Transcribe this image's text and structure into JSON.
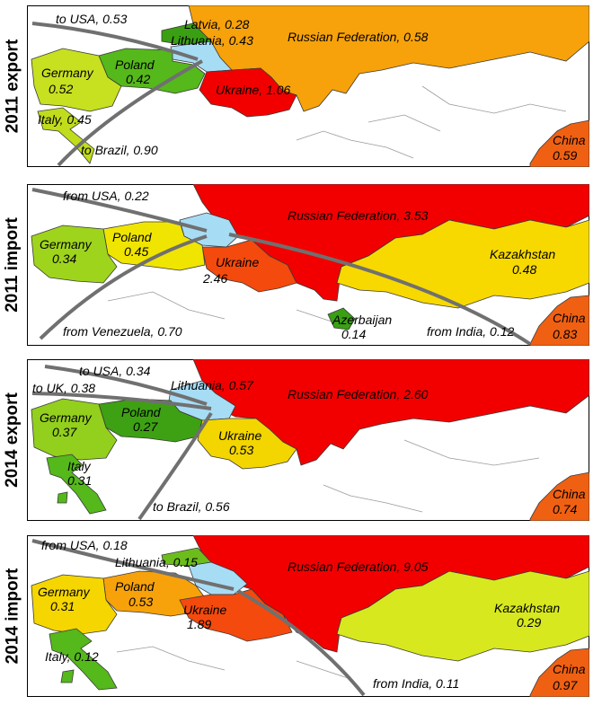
{
  "colors": {
    "sea": "#ffffff",
    "border": "#3a3a3a",
    "arrow": "#707070"
  },
  "panels": [
    {
      "title": "2011 export",
      "countries": {
        "russia": {
          "label": "Russian Federation, 0.58",
          "color": "#f7a20a"
        },
        "ukraine": {
          "label": "Ukraine, 1.06",
          "color": "#f20000"
        },
        "poland": {
          "label": "Poland",
          "value": "0.42",
          "color": "#55b81b"
        },
        "germany": {
          "label": "Germany",
          "value": "0.52",
          "color": "#c7e01f"
        },
        "latvia": {
          "label": "Latvia, 0.28",
          "color": "#3b9f14"
        },
        "lithuania": {
          "label": "Lithuania, 0.43",
          "color": "#a7dcf5"
        },
        "italy": {
          "label": "Italy, 0.45",
          "color": "#c0dc1c"
        },
        "china": {
          "label": "China",
          "value": "0.59",
          "color": "#f06012"
        }
      },
      "flows": [
        {
          "label": "to USA, 0.53"
        },
        {
          "label": "to Brazil, 0.90"
        }
      ]
    },
    {
      "title": "2011 import",
      "countries": {
        "russia": {
          "label": "Russian Federation, 3.53",
          "color": "#f20000"
        },
        "ukraine": {
          "label": "Ukraine",
          "value": "2.46",
          "color": "#f44a0d"
        },
        "poland": {
          "label": "Poland",
          "value": "0.45",
          "color": "#f0e500"
        },
        "germany": {
          "label": "Germany",
          "value": "0.34",
          "color": "#9fd41c"
        },
        "lithuania": {
          "label": "",
          "color": "#a7dcf5"
        },
        "kazakhstan": {
          "label": "Kazakhstan",
          "value": "0.48",
          "color": "#f7d900"
        },
        "azerbaijan": {
          "label": "Azerbaijan",
          "value": "0.14",
          "color": "#3a9f14"
        },
        "china": {
          "label": "China",
          "value": "0.83",
          "color": "#f06012"
        }
      },
      "flows": [
        {
          "label": "from USA, 0.22"
        },
        {
          "label": "from Venezuela, 0.70"
        },
        {
          "label": "from India, 0.12"
        }
      ]
    },
    {
      "title": "2014 export",
      "countries": {
        "russia": {
          "label": "Russian Federation, 2.60",
          "color": "#f20000"
        },
        "ukraine": {
          "label": "Ukraine",
          "value": "0.53",
          "color": "#f3d500"
        },
        "poland": {
          "label": "Poland",
          "value": "0.27",
          "color": "#3ea013"
        },
        "germany": {
          "label": "Germany",
          "value": "0.37",
          "color": "#93cf1d"
        },
        "lithuania": {
          "label": "Lithuania, 0.57",
          "color": "#a7dcf5"
        },
        "italy": {
          "label": "Italy",
          "value": "0.31",
          "color": "#55b81b"
        },
        "china": {
          "label": "China",
          "value": "0.74",
          "color": "#f06012"
        }
      },
      "flows": [
        {
          "label": "to USA, 0.34"
        },
        {
          "label": "to UK, 0.38"
        },
        {
          "label": "to Brazil, 0.56"
        }
      ]
    },
    {
      "title": "2014 import",
      "countries": {
        "russia": {
          "label": "Russian Federation, 9.05",
          "color": "#f20000"
        },
        "ukraine": {
          "label": "Ukraine",
          "value": "1.89",
          "color": "#f44a0d"
        },
        "poland": {
          "label": "Poland",
          "value": "0.53",
          "color": "#f7a20a"
        },
        "germany": {
          "label": "Germany",
          "value": "0.31",
          "color": "#f5d600"
        },
        "lithuania": {
          "label": "Lithuania, 0.15",
          "color": "#a7dcf5"
        },
        "latvia": {
          "label": "",
          "color": "#6cbd1c"
        },
        "kazakhstan": {
          "label": "Kazakhstan",
          "value": "0.29",
          "color": "#d7e81f"
        },
        "italy": {
          "label": "Italy, 0.12",
          "color": "#55b81b"
        },
        "china": {
          "label": "China",
          "value": "0.97",
          "color": "#f06012"
        }
      },
      "flows": [
        {
          "label": "from USA, 0.18"
        },
        {
          "label": "from India, 0.11"
        }
      ]
    }
  ]
}
